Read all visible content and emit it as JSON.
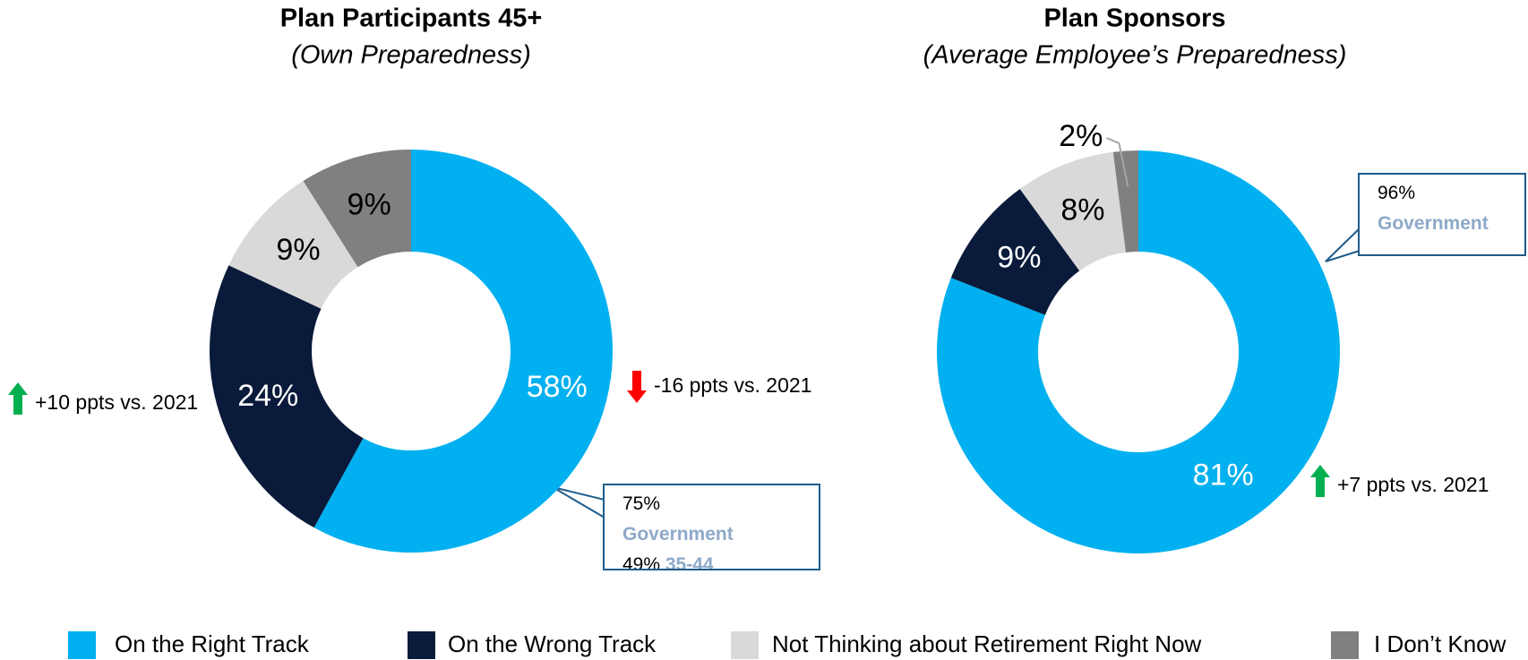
{
  "chart_data": [
    {
      "type": "donut",
      "title": "Plan Participants 45+",
      "subtitle": "(Own Preparedness)",
      "categories": [
        "On the Right Track",
        "On the Wrong Track",
        "Not Thinking about Retirement Right Now",
        "I Don’t Know"
      ],
      "values": [
        58,
        24,
        9,
        9
      ],
      "value_labels": [
        "58%",
        "24%",
        "9%",
        "9%"
      ],
      "colors": [
        "#00B0F0",
        "#0A1A3A",
        "#D9D9D9",
        "#808080"
      ],
      "annotations": [
        {
          "text": "-16 ppts vs. 2021",
          "direction": "down",
          "color": "#FF0000"
        },
        {
          "text": "+10 ppts vs. 2021",
          "direction": "up",
          "color": "#00B050"
        }
      ],
      "callout": [
        {
          "value": "75%"
        },
        {
          "label": "Government"
        },
        {
          "value": "49%",
          "label": "35-44"
        }
      ]
    },
    {
      "type": "donut",
      "title": "Plan Sponsors",
      "subtitle": "(Average Employee’s Preparedness)",
      "categories": [
        "On the Right Track",
        "On the Wrong Track",
        "Not Thinking about Retirement Right Now",
        "I Don’t Know"
      ],
      "values": [
        81,
        9,
        8,
        2
      ],
      "value_labels": [
        "81%",
        "9%",
        "8%",
        "2%"
      ],
      "colors": [
        "#00B0F0",
        "#0A1A3A",
        "#D9D9D9",
        "#808080"
      ],
      "annotations": [
        {
          "text": "+7 ppts vs. 2021",
          "direction": "up",
          "color": "#00B050"
        }
      ],
      "callout": [
        {
          "value": "96%"
        },
        {
          "label": "Government"
        }
      ]
    }
  ]
}
